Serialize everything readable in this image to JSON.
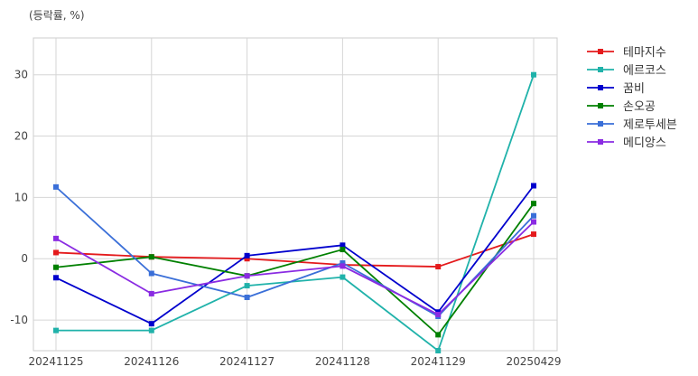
{
  "chart_data": {
    "type": "line",
    "ylabel": "(등락률, %)",
    "categories": [
      "20241125",
      "20241126",
      "20241127",
      "20241128",
      "20241129",
      "20250429"
    ],
    "ylim": [
      -15,
      36
    ],
    "yticks": [
      -10,
      0,
      10,
      20,
      30
    ],
    "grid": true,
    "legend_position": "right",
    "series": [
      {
        "name": "테마지수",
        "color": "#e41a1c",
        "values": [
          1.0,
          0.3,
          0.0,
          -1.0,
          -1.3,
          4.0
        ]
      },
      {
        "name": "에르코스",
        "color": "#20b2aa",
        "values": [
          -11.7,
          -11.7,
          -4.4,
          -3.0,
          -15.0,
          30.0
        ]
      },
      {
        "name": "꿈비",
        "color": "#0000cd",
        "values": [
          -3.1,
          -10.6,
          0.5,
          2.2,
          -8.7,
          11.9
        ]
      },
      {
        "name": "손오공",
        "color": "#008000",
        "values": [
          -1.4,
          0.3,
          -2.8,
          1.5,
          -12.4,
          9.0
        ]
      },
      {
        "name": "제로투세븐",
        "color": "#3a6fd8",
        "values": [
          11.7,
          -2.4,
          -6.3,
          -0.7,
          -9.4,
          7.0
        ]
      },
      {
        "name": "메디앙스",
        "color": "#8a2be2",
        "values": [
          3.3,
          -5.7,
          -2.8,
          -1.2,
          -9.1,
          6.0
        ]
      }
    ]
  }
}
